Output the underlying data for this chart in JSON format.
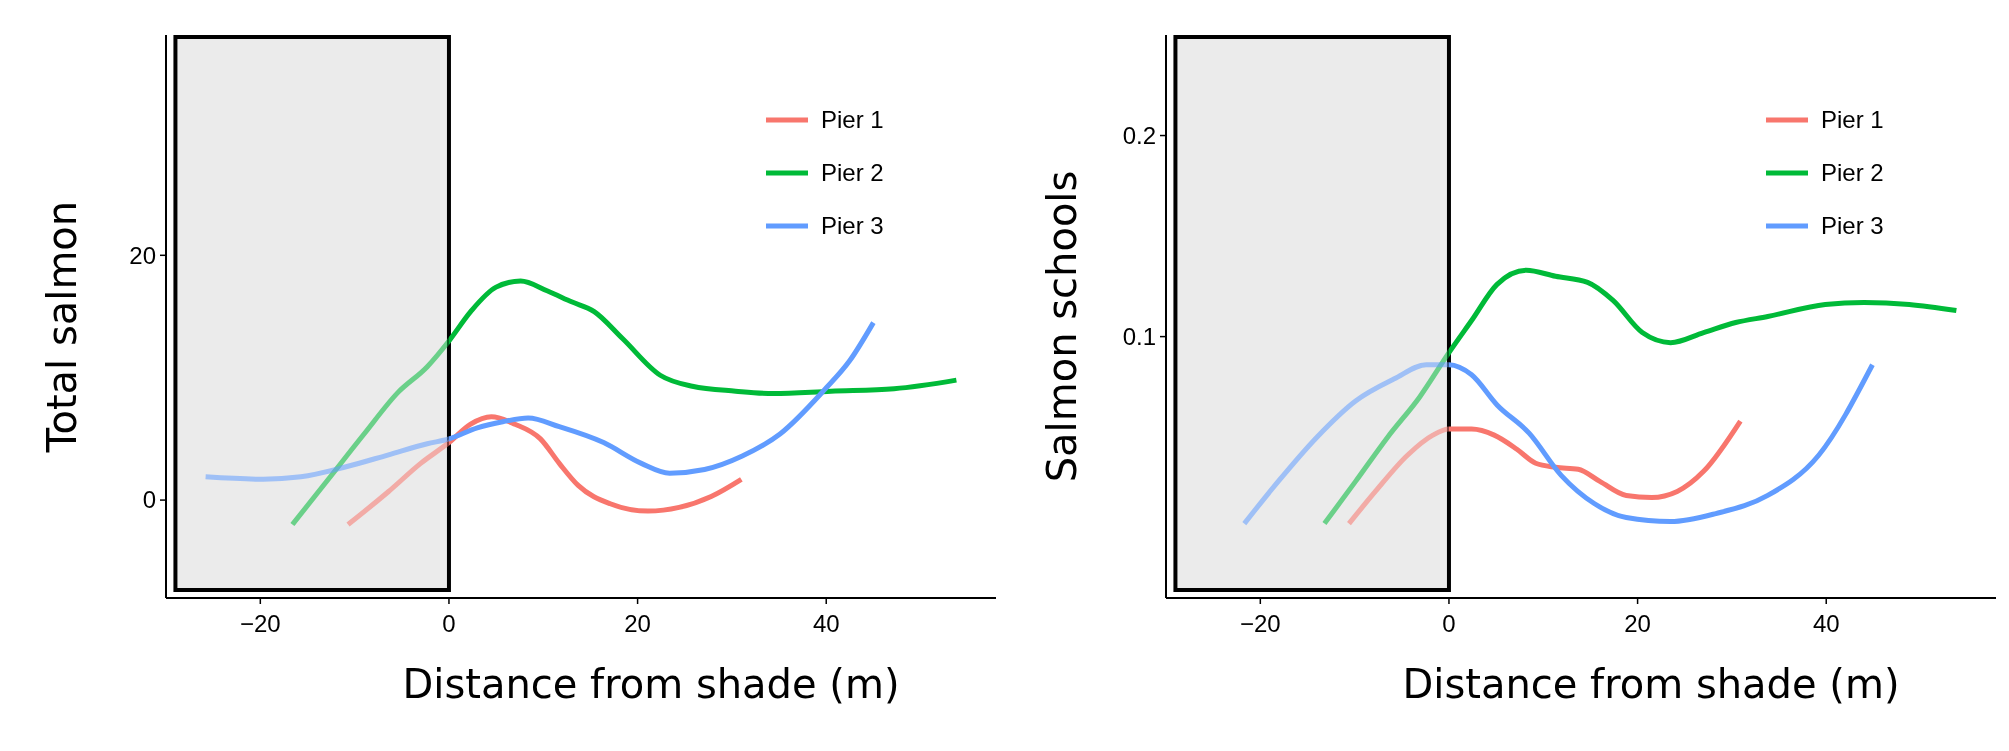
{
  "chart_data": [
    {
      "type": "line",
      "xlabel": "Distance from shade (m)",
      "ylabel": "Total salmon",
      "legend": "top right",
      "xlim": [
        -30,
        58
      ],
      "ylim": [
        -8,
        38
      ],
      "xticks": [
        {
          "value": -20,
          "label": "−20"
        },
        0,
        20,
        40
      ],
      "yticks": [
        0,
        20
      ],
      "bands": [
        {
          "axis": "x",
          "from": -29,
          "to": 0,
          "color": "#ebebeb"
        }
      ],
      "series": [
        {
          "name": "Pier 1",
          "color": "#f8766d",
          "x": [
            -10.7,
            -6.4,
            -3.0,
            0,
            2.3,
            4.5,
            7.0,
            9.7,
            11.7,
            13.7,
            17.1,
            21.1,
            24.4,
            27.8,
            31.0
          ],
          "values": [
            -2.0,
            0.7,
            3.0,
            4.7,
            6.2,
            6.8,
            6.2,
            5.0,
            3.0,
            1.2,
            -0.3,
            -0.9,
            -0.6,
            0.3,
            1.7
          ]
        },
        {
          "name": "Pier 2",
          "color": "#00ba38",
          "x": [
            -16.6,
            -13.0,
            -9.0,
            -5.4,
            -2.3,
            0,
            2.3,
            5.0,
            7.6,
            10.4,
            13.0,
            15.4,
            18.4,
            22.4,
            25.8,
            30.4,
            34.4,
            40.5,
            47.2,
            53.8
          ],
          "values": [
            -2.0,
            1.5,
            5.4,
            8.8,
            10.9,
            13.0,
            15.4,
            17.4,
            17.9,
            17.1,
            16.2,
            15.4,
            13.2,
            10.2,
            9.3,
            8.9,
            8.7,
            8.9,
            9.1,
            9.8
          ]
        },
        {
          "name": "Pier 3",
          "color": "#619cff",
          "x": [
            -25.8,
            -19.7,
            -15.7,
            -11.0,
            -6.4,
            -2.3,
            0,
            3.0,
            5.7,
            8.4,
            11.7,
            16.4,
            20.4,
            23.4,
            27.1,
            31.1,
            35.1,
            39.8,
            42.5,
            45.0
          ],
          "values": [
            1.9,
            1.7,
            1.9,
            2.7,
            3.7,
            4.6,
            5.0,
            5.9,
            6.4,
            6.7,
            6.0,
            4.7,
            3.0,
            2.2,
            2.5,
            3.6,
            5.4,
            9.0,
            11.4,
            14.5
          ]
        }
      ]
    },
    {
      "type": "line",
      "xlabel": "Distance from shade (m)",
      "ylabel": "Salmon schools",
      "legend": "top right",
      "xlim": [
        -30,
        58
      ],
      "ylim": [
        -0.03,
        0.25
      ],
      "xticks": [
        {
          "value": -20,
          "label": "−20"
        },
        0,
        20,
        40
      ],
      "yticks": [
        0.1,
        0.2
      ],
      "bands": [
        {
          "axis": "x",
          "from": -29,
          "to": 0,
          "color": "#ebebeb"
        }
      ],
      "series": [
        {
          "name": "Pier 1",
          "color": "#f8766d",
          "x": [
            -10.6,
            -7.8,
            -4.4,
            -1.7,
            0,
            2.4,
            4.8,
            7.2,
            9.2,
            11.3,
            13.7,
            16.0,
            18.8,
            21.5,
            24.2,
            27.0,
            30.9
          ],
          "values": [
            0.007,
            0.023,
            0.041,
            0.051,
            0.054,
            0.054,
            0.051,
            0.044,
            0.037,
            0.035,
            0.034,
            0.028,
            0.021,
            0.02,
            0.023,
            0.033,
            0.058
          ]
        },
        {
          "name": "Pier 2",
          "color": "#00ba38",
          "x": [
            -13.2,
            -9.9,
            -6.5,
            -3.1,
            0,
            2.4,
            5.1,
            8.2,
            11.3,
            14.7,
            17.4,
            20.5,
            23.5,
            27.0,
            30.4,
            33.8,
            39.9,
            44.0,
            48.8,
            53.8
          ],
          "values": [
            0.007,
            0.028,
            0.05,
            0.07,
            0.092,
            0.108,
            0.126,
            0.133,
            0.13,
            0.127,
            0.118,
            0.102,
            0.097,
            0.102,
            0.107,
            0.11,
            0.116,
            0.117,
            0.116,
            0.113
          ]
        },
        {
          "name": "Pier 3",
          "color": "#619cff",
          "x": [
            -21.7,
            -18.1,
            -14.0,
            -9.9,
            -5.8,
            -2.4,
            0,
            2.4,
            5.1,
            8.5,
            11.9,
            15.4,
            18.8,
            23.5,
            28.3,
            33.8,
            39.2,
            44.9
          ],
          "values": [
            0.007,
            0.028,
            0.05,
            0.068,
            0.079,
            0.086,
            0.086,
            0.081,
            0.066,
            0.052,
            0.031,
            0.017,
            0.01,
            0.008,
            0.012,
            0.021,
            0.041,
            0.086
          ]
        }
      ]
    }
  ]
}
